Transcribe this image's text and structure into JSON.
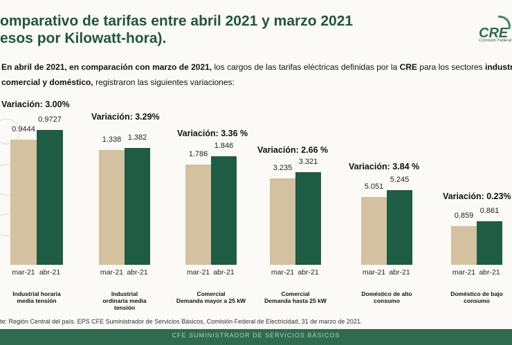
{
  "title_line1": "omparativo de tarifas entre abril 2021 y marzo 2021",
  "title_line2": "esos por Kilowatt-hora).",
  "logo_text": "CRE",
  "logo_subtext": "Comisión Federal",
  "intro": {
    "seg1": "En abril de 2021, en comparación con marzo de 2021,",
    "seg2": " los cargos de las tarifas eléctricas definidas por la ",
    "seg3": "CRE",
    "seg4": " para los sectores ",
    "seg5": "industrial,",
    "seg6": "comercial y doméstico,",
    "seg7": " registraron las siguientes variaciones:"
  },
  "source": "te: Región Central del país. EPS CFE Suministrador de Servicios Básicos, Comisión Federal de Electricidad, 31 de marzo de 2021.",
  "footer": "CFE SUMINISTRADOR DE SERVICIOS BÁSICOS",
  "colors": {
    "mar": "#d3c19f",
    "abr": "#1e5c43",
    "title": "#1f5640"
  },
  "chart_data": {
    "type": "bar",
    "series": [
      {
        "name": "mar-21",
        "color": "#d3c19f"
      },
      {
        "name": "abr-21",
        "color": "#1e5c43"
      }
    ],
    "groups": [
      {
        "label": [
          "Industrial horaria",
          "media tensión"
        ],
        "variation": "Variación: 3.00%",
        "values": [
          "0.9444",
          "0.9727"
        ],
        "ticks": [
          "mar-21",
          "abr-21"
        ]
      },
      {
        "label": [
          "Industrial",
          "ordinaria media",
          "tensión"
        ],
        "variation": "Variación:  3.29%",
        "values": [
          "1.338",
          "1.382"
        ],
        "ticks": [
          "mar-21",
          "abr-21"
        ]
      },
      {
        "label": [
          "Comercial",
          "Demanda mayor a 25 kW"
        ],
        "variation": "Variación: 3.36 %",
        "values": [
          "1.786",
          "1.846"
        ],
        "ticks": [
          "mar-21",
          "abr-21"
        ]
      },
      {
        "label": [
          "Comercial",
          "Demanda hasta  25 kW"
        ],
        "variation": "Variación:  2.66 %",
        "values": [
          "3.235",
          "3.321"
        ],
        "ticks": [
          "mar-21",
          "abr-21"
        ]
      },
      {
        "label": [
          "Doméstico de alto",
          "consumo"
        ],
        "variation": "Variación:  3.84 %",
        "values": [
          "5.051",
          "5.245"
        ],
        "ticks": [
          "mar-21",
          "abr-21"
        ]
      },
      {
        "label": [
          "Doméstico de bajo",
          "consumo"
        ],
        "variation": "Variación: 0.23%",
        "values": [
          "0.859",
          "0.861"
        ],
        "ticks": [
          "mar-21",
          "abr-21"
        ]
      }
    ]
  }
}
